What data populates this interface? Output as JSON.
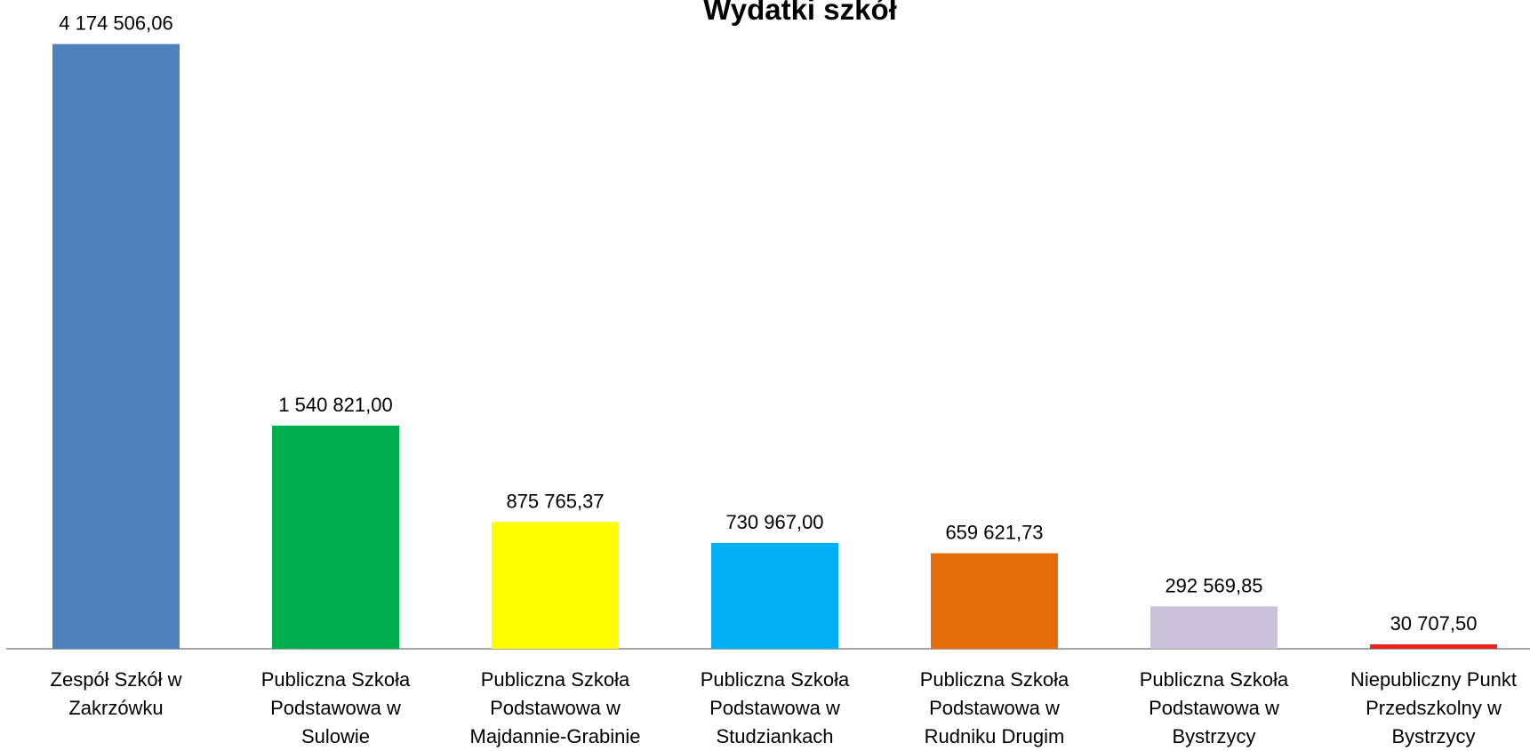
{
  "chart_data": {
    "type": "bar",
    "title": "Wydatki szkół",
    "categories": [
      "Zespół Szkół w Zakrzówku",
      "Publiczna Szkoła Podstawowa w Sulowie",
      "Publiczna Szkoła Podstawowa w Majdannie-Grabinie",
      "Publiczna Szkoła Podstawowa w Studziankach",
      "Publiczna Szkoła Podstawowa w Rudniku Drugim",
      "Publiczna Szkoła Podstawowa w Bystrzycy",
      "Niepubliczny Punkt Przedszkolny w Bystrzycy"
    ],
    "values": [
      4174506.06,
      1540821.0,
      875765.37,
      730967.0,
      659621.73,
      292569.85,
      30707.5
    ],
    "value_labels": [
      "4 174 506,06",
      "1 540 821,00",
      "875 765,37",
      "730 967,00",
      "659 621,73",
      "292 569,85",
      "30 707,50"
    ],
    "colors": [
      "#4f81bd",
      "#00b050",
      "#ffff00",
      "#00b0f0",
      "#e46c0a",
      "#ccc1da",
      "#e8251f"
    ],
    "ylim": [
      0,
      4200000
    ]
  }
}
